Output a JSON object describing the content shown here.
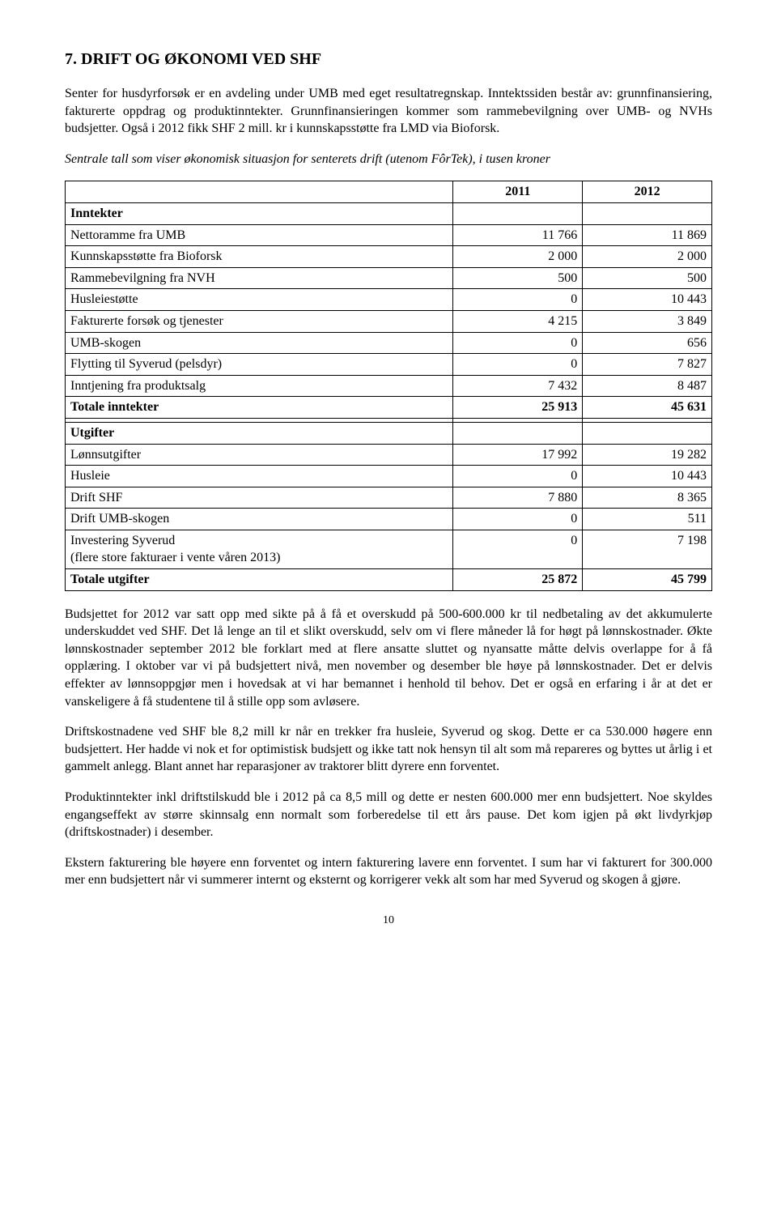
{
  "heading": "7. DRIFT OG ØKONOMI VED SHF",
  "para1": "Senter for husdyrforsøk er en avdeling under UMB med eget resultatregnskap. Inntektssiden består av: grunnfinansiering, fakturerte oppdrag og produktinntekter. Grunnfinansieringen kommer som rammebevilgning over UMB- og NVHs budsjetter. Også i 2012 fikk SHF 2 mill. kr i kunnskapsstøtte fra LMD via Bioforsk.",
  "para2": "Sentrale tall som viser økonomisk situasjon for senterets drift (utenom FôrTek), i tusen kroner",
  "table": {
    "year1": "2011",
    "year2": "2012",
    "rows": [
      {
        "label": "Inntekter",
        "v1": "",
        "v2": "",
        "bold": true
      },
      {
        "label": "Nettoramme  fra UMB",
        "v1": "11 766",
        "v2": "11 869"
      },
      {
        "label": "Kunnskapsstøtte fra  Bioforsk",
        "v1": "2 000",
        "v2": "2 000"
      },
      {
        "label": "Rammebevilgning fra NVH",
        "v1": "500",
        "v2": "500"
      },
      {
        "label": "Husleiestøtte",
        "v1": "0",
        "v2": "10 443"
      },
      {
        "label": "Fakturerte forsøk og tjenester",
        "v1": "4 215",
        "v2": "3 849"
      },
      {
        "label": "UMB-skogen",
        "v1": "0",
        "v2": "656"
      },
      {
        "label": "Flytting til Syverud (pelsdyr)",
        "v1": "0",
        "v2": "7 827"
      },
      {
        "label": "Inntjening fra produktsalg",
        "v1": "7 432",
        "v2": "8 487"
      },
      {
        "label": "Totale inntekter",
        "v1": "25 913",
        "v2": "45 631",
        "bold": true
      },
      {
        "label": "",
        "v1": "",
        "v2": ""
      },
      {
        "label": "Utgifter",
        "v1": "",
        "v2": "",
        "bold": true
      },
      {
        "label": "Lønnsutgifter",
        "v1": "17 992",
        "v2": "19 282"
      },
      {
        "label": "Husleie",
        "v1": "0",
        "v2": "10 443"
      },
      {
        "label": "Drift SHF",
        "v1": "7 880",
        "v2": "8 365"
      },
      {
        "label": "Drift UMB-skogen",
        "v1": "0",
        "v2": "511"
      },
      {
        "label": "Investering Syverud\n(flere store fakturaer i vente våren 2013)",
        "v1": "0",
        "v2": "7 198"
      },
      {
        "label": "Totale utgifter",
        "v1": "25 872",
        "v2": "45 799",
        "bold": true
      }
    ]
  },
  "para3": "Budsjettet for 2012 var satt opp med sikte på å få et overskudd på 500-600.000 kr til nedbetaling av det akkumulerte underskuddet ved SHF. Det lå lenge an til et slikt overskudd, selv om vi flere måneder lå for høgt på lønnskostnader. Økte lønnskostnader september 2012 ble forklart med at flere ansatte sluttet og nyansatte måtte delvis overlappe for å få opplæring. I oktober var vi på budsjettert nivå, men november og desember ble høye på lønnskostnader. Det er delvis effekter av lønnsoppgjør men i hovedsak at vi har bemannet i henhold til behov. Det er også en erfaring i år at det er vanskeligere å få studentene til å stille opp som avløsere.",
  "para4": "Driftskostnadene ved SHF ble 8,2 mill kr når en trekker fra husleie, Syverud og skog. Dette er ca 530.000 høgere enn budsjettert. Her hadde vi nok et for optimistisk budsjett og ikke tatt nok hensyn til alt som må repareres og byttes ut årlig i et gammelt anlegg. Blant annet har reparasjoner av traktorer blitt dyrere enn forventet.",
  "para5": "Produktinntekter inkl driftstilskudd ble i 2012 på ca 8,5 mill og dette er nesten 600.000 mer enn budsjettert. Noe skyldes engangseffekt av større skinnsalg enn normalt som forberedelse til ett års pause. Det kom igjen på økt livdyrkjøp (driftskostnader) i desember.",
  "para6": "Ekstern fakturering ble høyere enn forventet og intern fakturering lavere enn forventet. I sum har vi fakturert for 300.000 mer enn budsjettert når vi summerer internt og eksternt og korrigerer vekk alt som har med Syverud og skogen å gjøre.",
  "pagenum": "10"
}
